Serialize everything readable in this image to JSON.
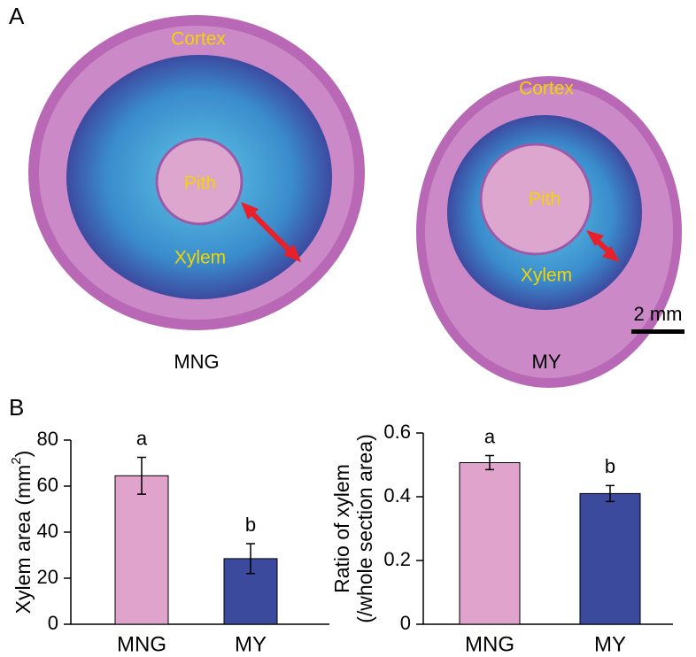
{
  "panel_a": {
    "letter": "A",
    "left": {
      "cortex": "Cortex",
      "pith": "Pith",
      "xylem": "Xylem",
      "label": "MNG"
    },
    "right": {
      "cortex": "Cortex",
      "pith": "Pith",
      "xylem": "Xylem",
      "label": "MY"
    },
    "scale_bar": "2 mm"
  },
  "panel_b": {
    "letter": "B"
  },
  "chart_data": [
    {
      "type": "bar",
      "y_label": [
        "Xylem area (mm",
        "2",
        ")"
      ],
      "categories": [
        "MNG",
        "MY"
      ],
      "values": [
        64.5,
        28.5
      ],
      "errors": [
        8,
        6.5
      ],
      "annotations": [
        "a",
        "b"
      ],
      "colors": [
        "#e0a3cc",
        "#3b4a9c"
      ],
      "ylim": [
        0,
        80
      ],
      "yticks": [
        0,
        20,
        40,
        60,
        80
      ]
    },
    {
      "type": "bar",
      "y_label": [
        "Ratio of xylem",
        "(/whole section area)"
      ],
      "categories": [
        "MNG",
        "MY"
      ],
      "values": [
        0.507,
        0.41
      ],
      "errors": [
        0.022,
        0.025
      ],
      "annotations": [
        "a",
        "b"
      ],
      "colors": [
        "#e0a3cc",
        "#3b4a9c"
      ],
      "ylim": [
        0,
        0.6
      ],
      "yticks": [
        0,
        0.2,
        0.4,
        0.6
      ]
    }
  ]
}
